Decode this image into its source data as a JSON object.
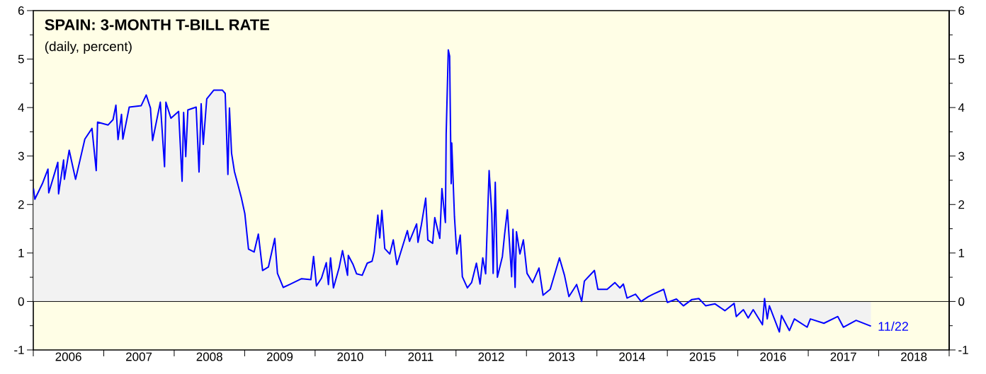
{
  "chart_data": {
    "type": "area",
    "title": "SPAIN: 3-MONTH T-BILL RATE",
    "subtitle": "(daily, percent)",
    "xlim": [
      "2006-01-01",
      "2019-01-01"
    ],
    "xticks": [
      {
        "value": "2006-01-01",
        "label": null
      },
      {
        "value": "2006-07-02",
        "label": "2006"
      },
      {
        "value": "2007-01-01",
        "label": null
      },
      {
        "value": "2007-07-02",
        "label": "2007"
      },
      {
        "value": "2008-01-01",
        "label": null
      },
      {
        "value": "2008-07-02",
        "label": "2008"
      },
      {
        "value": "2009-01-01",
        "label": null
      },
      {
        "value": "2009-07-02",
        "label": "2009"
      },
      {
        "value": "2010-01-01",
        "label": null
      },
      {
        "value": "2010-07-02",
        "label": "2010"
      },
      {
        "value": "2011-01-01",
        "label": null
      },
      {
        "value": "2011-07-02",
        "label": "2011"
      },
      {
        "value": "2012-01-01",
        "label": null
      },
      {
        "value": "2012-07-02",
        "label": "2012"
      },
      {
        "value": "2013-01-01",
        "label": null
      },
      {
        "value": "2013-07-02",
        "label": "2013"
      },
      {
        "value": "2014-01-01",
        "label": null
      },
      {
        "value": "2014-07-02",
        "label": "2014"
      },
      {
        "value": "2015-01-01",
        "label": null
      },
      {
        "value": "2015-07-02",
        "label": "2015"
      },
      {
        "value": "2016-01-01",
        "label": null
      },
      {
        "value": "2016-07-02",
        "label": "2016"
      },
      {
        "value": "2017-01-01",
        "label": null
      },
      {
        "value": "2017-07-02",
        "label": "2017"
      },
      {
        "value": "2018-01-01",
        "label": null
      },
      {
        "value": "2018-07-02",
        "label": "2018"
      },
      {
        "value": "2019-01-01",
        "label": null
      }
    ],
    "ylim": [
      -1,
      6
    ],
    "yticks": [
      -1,
      0,
      1,
      2,
      3,
      4,
      5,
      6
    ],
    "y2lim": [
      -1,
      6
    ],
    "y2ticks": [
      -1,
      0,
      1,
      2,
      3,
      4,
      5,
      6
    ],
    "ref_lines": [
      {
        "axis": "y",
        "value": 0,
        "color": "#000000"
      }
    ],
    "annotations": [
      {
        "text": "11/22",
        "x": "2017-11-22",
        "y": -0.51
      }
    ],
    "series": [
      {
        "color": "#0000ff",
        "x": [
          "2006-01-02",
          "2006-01-09",
          "2006-02-17",
          "2006-03-18",
          "2006-03-22",
          "2006-05-08",
          "2006-05-12",
          "2006-06-07",
          "2006-06-11",
          "2006-07-06",
          "2006-08-08",
          "2006-09-25",
          "2006-11-01",
          "2006-11-23",
          "2006-11-30",
          "2007-01-23",
          "2007-02-18",
          "2007-03-05",
          "2007-03-16",
          "2007-04-03",
          "2007-04-10",
          "2007-05-13",
          "2007-07-14",
          "2007-08-09",
          "2007-08-31",
          "2007-09-11",
          "2007-10-21",
          "2007-11-12",
          "2007-11-19",
          "2007-12-15",
          "2008-01-24",
          "2008-02-11",
          "2008-02-19",
          "2008-03-01",
          "2008-03-12",
          "2008-04-24",
          "2008-05-09",
          "2008-05-20",
          "2008-05-31",
          "2008-06-18",
          "2008-07-25",
          "2008-09-07",
          "2008-09-22",
          "2008-10-06",
          "2008-10-14",
          "2008-10-25",
          "2008-11-09",
          "2008-12-15",
          "2009-01-02",
          "2009-01-21",
          "2009-02-19",
          "2009-03-13",
          "2009-04-04",
          "2009-05-04",
          "2009-06-06",
          "2009-06-20",
          "2009-07-20",
          "2009-08-22",
          "2009-10-23",
          "2009-12-10",
          "2009-12-24",
          "2010-01-08",
          "2010-02-03",
          "2010-02-28",
          "2010-03-11",
          "2010-03-22",
          "2010-04-06",
          "2010-05-05",
          "2010-05-23",
          "2010-06-18",
          "2010-06-22",
          "2010-07-17",
          "2010-08-04",
          "2010-09-02",
          "2010-09-28",
          "2010-10-23",
          "2010-11-03",
          "2010-11-22",
          "2010-12-02",
          "2010-12-13",
          "2010-12-28",
          "2011-01-23",
          "2011-02-10",
          "2011-03-01",
          "2011-04-24",
          "2011-05-05",
          "2011-06-11",
          "2011-06-18",
          "2011-07-06",
          "2011-07-28",
          "2011-08-08",
          "2011-09-02",
          "2011-09-13",
          "2011-10-09",
          "2011-10-20",
          "2011-11-07",
          "2011-11-11",
          "2011-11-22",
          "2011-11-29",
          "2011-12-07",
          "2011-12-10",
          "2011-12-24",
          "2012-01-05",
          "2012-01-23",
          "2012-02-03",
          "2012-02-29",
          "2012-03-22",
          "2012-04-16",
          "2012-05-05",
          "2012-05-19",
          "2012-06-03",
          "2012-06-21",
          "2012-07-05",
          "2012-07-12",
          "2012-07-23",
          "2012-08-03",
          "2012-08-29",
          "2012-09-09",
          "2012-09-24",
          "2012-10-16",
          "2012-10-23",
          "2012-11-03",
          "2012-11-10",
          "2012-11-28",
          "2012-12-16",
          "2013-01-04",
          "2013-02-02",
          "2013-03-07",
          "2013-03-28",
          "2013-05-04",
          "2013-06-21",
          "2013-07-17",
          "2013-08-09",
          "2013-09-18",
          "2013-10-14",
          "2013-10-28",
          "2013-12-19",
          "2014-01-06",
          "2014-02-23",
          "2014-04-04",
          "2014-04-30",
          "2014-05-18",
          "2014-06-06",
          "2014-07-20",
          "2014-08-18",
          "2014-09-24",
          "2014-10-19",
          "2014-12-13",
          "2015-01-01",
          "2015-02-17",
          "2015-03-25",
          "2015-05-08",
          "2015-06-13",
          "2015-07-19",
          "2015-09-05",
          "2015-10-26",
          "2015-12-13",
          "2015-12-24",
          "2016-01-30",
          "2016-02-24",
          "2016-03-21",
          "2016-05-08",
          "2016-05-19",
          "2016-06-02",
          "2016-06-13",
          "2016-08-04",
          "2016-08-15",
          "2016-09-25",
          "2016-10-21",
          "2016-12-26",
          "2017-01-12",
          "2017-03-23",
          "2017-06-03",
          "2017-07-02",
          "2017-09-06",
          "2017-11-22"
        ],
        "values": [
          2.33,
          2.11,
          2.43,
          2.73,
          2.24,
          2.87,
          2.22,
          2.92,
          2.52,
          3.12,
          2.52,
          3.35,
          3.57,
          2.7,
          3.7,
          3.64,
          3.75,
          4.05,
          3.34,
          3.86,
          3.35,
          4.01,
          4.04,
          4.26,
          3.99,
          3.32,
          4.11,
          2.78,
          4.11,
          3.78,
          3.92,
          2.48,
          3.9,
          2.99,
          3.95,
          4.01,
          2.67,
          4.08,
          3.24,
          4.18,
          4.36,
          4.36,
          4.29,
          2.62,
          3.99,
          3.06,
          2.68,
          2.14,
          1.81,
          1.08,
          1.02,
          1.39,
          0.64,
          0.71,
          1.3,
          0.58,
          0.29,
          0.35,
          0.47,
          0.45,
          0.93,
          0.32,
          0.48,
          0.8,
          0.35,
          0.9,
          0.28,
          0.69,
          1.05,
          0.54,
          0.95,
          0.76,
          0.57,
          0.54,
          0.79,
          0.83,
          1.02,
          1.78,
          1.31,
          1.88,
          1.09,
          0.98,
          1.27,
          0.76,
          1.46,
          1.24,
          1.6,
          1.22,
          1.59,
          2.13,
          1.27,
          1.2,
          1.73,
          1.3,
          2.33,
          1.63,
          3.45,
          5.19,
          5.06,
          2.43,
          3.27,
          1.75,
          0.98,
          1.37,
          0.51,
          0.28,
          0.39,
          0.79,
          0.36,
          0.9,
          0.57,
          2.7,
          1.81,
          0.58,
          2.46,
          0.5,
          0.93,
          1.37,
          1.89,
          0.51,
          1.49,
          0.29,
          1.44,
          0.98,
          1.27,
          0.58,
          0.39,
          0.69,
          0.13,
          0.25,
          0.9,
          0.54,
          0.1,
          0.35,
          0.0,
          0.42,
          0.64,
          0.25,
          0.25,
          0.39,
          0.28,
          0.36,
          0.07,
          0.15,
          0.0,
          0.1,
          0.15,
          0.25,
          -0.02,
          0.05,
          -0.09,
          0.04,
          0.06,
          -0.09,
          -0.05,
          -0.19,
          -0.04,
          -0.31,
          -0.17,
          -0.34,
          -0.17,
          -0.48,
          0.06,
          -0.36,
          -0.09,
          -0.63,
          -0.29,
          -0.6,
          -0.36,
          -0.53,
          -0.36,
          -0.45,
          -0.31,
          -0.53,
          -0.39,
          -0.51
        ]
      }
    ]
  }
}
